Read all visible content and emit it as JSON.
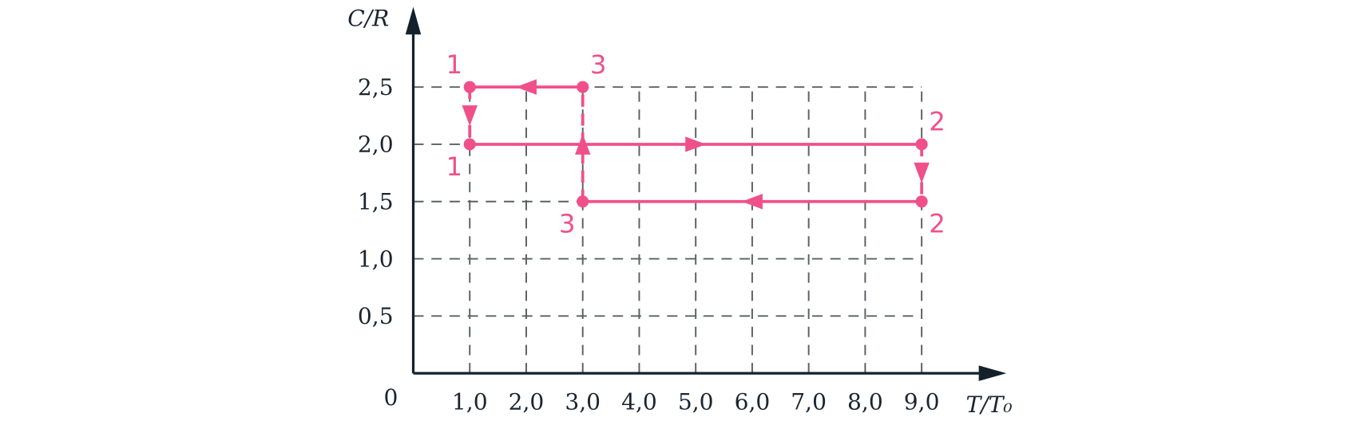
{
  "chart_data": {
    "type": "cycle",
    "xlabel": "T/T₀",
    "ylabel": "C/R",
    "origin_label": "0",
    "xlim": [
      0,
      10.5
    ],
    "ylim": [
      0,
      3.2
    ],
    "xticks": [
      {
        "value": 1,
        "label": "1,0"
      },
      {
        "value": 2,
        "label": "2,0"
      },
      {
        "value": 3,
        "label": "3,0"
      },
      {
        "value": 4,
        "label": "4,0"
      },
      {
        "value": 5,
        "label": "5,0"
      },
      {
        "value": 6,
        "label": "6,0"
      },
      {
        "value": 7,
        "label": "7,0"
      },
      {
        "value": 8,
        "label": "8,0"
      },
      {
        "value": 9,
        "label": "9,0"
      }
    ],
    "yticks": [
      {
        "value": 0.5,
        "label": "0,5"
      },
      {
        "value": 1,
        "label": "1,0"
      },
      {
        "value": 1.5,
        "label": "1,5"
      },
      {
        "value": 2,
        "label": "2,0"
      },
      {
        "value": 2.5,
        "label": "2,5"
      }
    ],
    "grid": true,
    "color": "#f0508a",
    "segments": [
      {
        "x": [
          3,
          1
        ],
        "values": [
          2.5,
          2.5
        ],
        "style": "solid"
      },
      {
        "x": [
          1,
          1
        ],
        "values": [
          2.5,
          2
        ],
        "style": "dashed"
      },
      {
        "x": [
          1,
          9
        ],
        "values": [
          2,
          2
        ],
        "style": "solid"
      },
      {
        "x": [
          9,
          9
        ],
        "values": [
          2,
          1.5
        ],
        "style": "dashed"
      },
      {
        "x": [
          9,
          3
        ],
        "values": [
          1.5,
          1.5
        ],
        "style": "solid"
      },
      {
        "x": [
          3,
          3
        ],
        "values": [
          1.5,
          2.5
        ],
        "style": "dashed"
      }
    ],
    "points": [
      {
        "label": "1",
        "x": 1,
        "y": 2.5
      },
      {
        "label": "3",
        "x": 3,
        "y": 2.5
      },
      {
        "label": "1",
        "x": 1,
        "y": 2
      },
      {
        "label": "2",
        "x": 9,
        "y": 2
      },
      {
        "label": "3",
        "x": 3,
        "y": 1.5
      },
      {
        "label": "2",
        "x": 9,
        "y": 1.5
      }
    ]
  }
}
